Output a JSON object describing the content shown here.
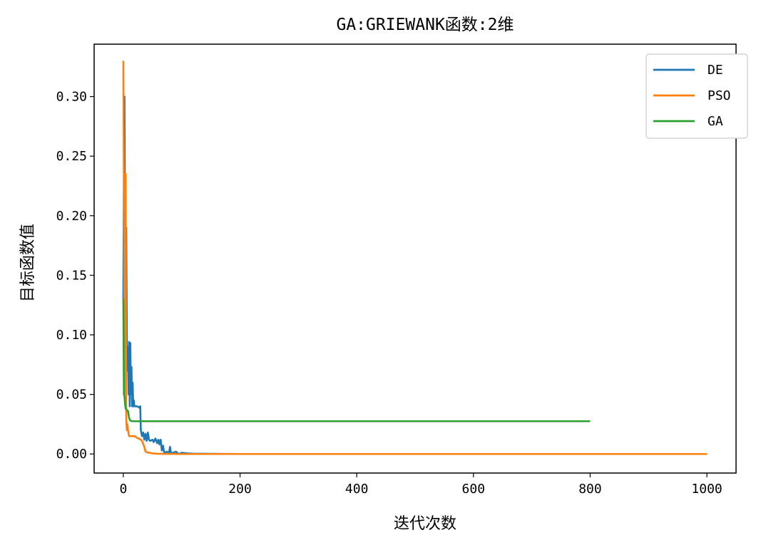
{
  "chart_data": {
    "type": "line",
    "title": "GA:GRIEWANK函数:2维",
    "xlabel": "迭代次数",
    "ylabel": "目标函数值",
    "xlim": [
      -50,
      1050
    ],
    "ylim": [
      -0.016,
      0.344
    ],
    "x_ticks": [
      0,
      200,
      400,
      600,
      800,
      1000
    ],
    "x_tick_labels": [
      "0",
      "200",
      "400",
      "600",
      "800",
      "1000"
    ],
    "y_ticks": [
      0.0,
      0.05,
      0.1,
      0.15,
      0.2,
      0.25,
      0.3
    ],
    "y_tick_labels": [
      "0.00",
      "0.05",
      "0.10",
      "0.15",
      "0.20",
      "0.25",
      "0.30"
    ],
    "grid": false,
    "legend_position": "top-right",
    "series": [
      {
        "name": "DE",
        "color": "#1f77b4",
        "points": [
          [
            0,
            0.13
          ],
          [
            1,
            0.23
          ],
          [
            2,
            0.3
          ],
          [
            3,
            0.17
          ],
          [
            4,
            0.13
          ],
          [
            5,
            0.19
          ],
          [
            6,
            0.1
          ],
          [
            7,
            0.07
          ],
          [
            8,
            0.09
          ],
          [
            9,
            0.05
          ],
          [
            10,
            0.094
          ],
          [
            11,
            0.04
          ],
          [
            12,
            0.093
          ],
          [
            13,
            0.05
          ],
          [
            14,
            0.073
          ],
          [
            15,
            0.04
          ],
          [
            16,
            0.06
          ],
          [
            17,
            0.04
          ],
          [
            18,
            0.045
          ],
          [
            19,
            0.04
          ],
          [
            20,
            0.04
          ],
          [
            24,
            0.04
          ],
          [
            27,
            0.039
          ],
          [
            29,
            0.04
          ],
          [
            30,
            0.02
          ],
          [
            32,
            0.015
          ],
          [
            34,
            0.018
          ],
          [
            36,
            0.012
          ],
          [
            38,
            0.017
          ],
          [
            40,
            0.011
          ],
          [
            42,
            0.018
          ],
          [
            44,
            0.012
          ],
          [
            46,
            0.011
          ],
          [
            50,
            0.012
          ],
          [
            52,
            0.01
          ],
          [
            55,
            0.013
          ],
          [
            58,
            0.009
          ],
          [
            60,
            0.012
          ],
          [
            62,
            0.008
          ],
          [
            64,
            0.012
          ],
          [
            66,
            0.003
          ],
          [
            68,
            0.007
          ],
          [
            70,
            0.001
          ],
          [
            75,
            0.002
          ],
          [
            78,
            0.0
          ],
          [
            80,
            0.006
          ],
          [
            82,
            0.0
          ],
          [
            85,
            0.001
          ],
          [
            90,
            0.002
          ],
          [
            95,
            0.0
          ],
          [
            100,
            0.001
          ],
          [
            110,
            0.0005
          ],
          [
            120,
            0.0003
          ],
          [
            150,
            0.0001
          ],
          [
            200,
            0.0
          ],
          [
            1000,
            0.0
          ]
        ]
      },
      {
        "name": "PSO",
        "color": "#ff7f0e",
        "points": [
          [
            0,
            0.33
          ],
          [
            1,
            0.22
          ],
          [
            2,
            0.1
          ],
          [
            3,
            0.05
          ],
          [
            4,
            0.235
          ],
          [
            5,
            0.03
          ],
          [
            6,
            0.02
          ],
          [
            7,
            0.025
          ],
          [
            8,
            0.02
          ],
          [
            9,
            0.017
          ],
          [
            10,
            0.015
          ],
          [
            15,
            0.015
          ],
          [
            20,
            0.015
          ],
          [
            22,
            0.014
          ],
          [
            26,
            0.013
          ],
          [
            30,
            0.012
          ],
          [
            32,
            0.011
          ],
          [
            36,
            0.006
          ],
          [
            38,
            0.002
          ],
          [
            40,
            0.0015
          ],
          [
            45,
            0.001
          ],
          [
            50,
            0.0005
          ],
          [
            60,
            0.0002
          ],
          [
            70,
            0.0001
          ],
          [
            100,
            0.0
          ],
          [
            1000,
            0.0
          ]
        ]
      },
      {
        "name": "GA",
        "color": "#2ca02c",
        "points": [
          [
            0,
            0.13
          ],
          [
            1,
            0.05
          ],
          [
            2,
            0.048
          ],
          [
            3,
            0.042
          ],
          [
            4,
            0.038
          ],
          [
            6,
            0.037
          ],
          [
            8,
            0.036
          ],
          [
            10,
            0.03
          ],
          [
            12,
            0.028
          ],
          [
            15,
            0.0275
          ],
          [
            20,
            0.0275
          ],
          [
            800,
            0.0275
          ]
        ]
      }
    ]
  }
}
